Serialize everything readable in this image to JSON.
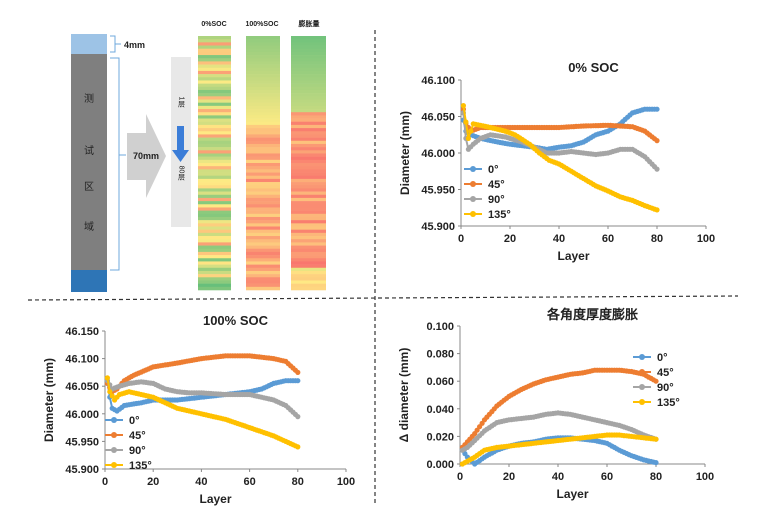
{
  "diagram": {
    "label_4mm": "4mm",
    "label_70mm": "70mm",
    "test_region_chars": [
      "测",
      "试",
      "区",
      "域"
    ],
    "layer_top": "1层",
    "layer_bottom": "80层",
    "strip_labels": [
      "0%SOC",
      "100%SOC",
      "膨胀量"
    ]
  },
  "colors": {
    "s0": "#5B9BD5",
    "s45": "#ED7D31",
    "s90": "#A5A5A5",
    "s135": "#FFC000",
    "divider": "#333333",
    "axis": "#888888",
    "grid": "#d9d9d9",
    "bar_top": "#9dc3e6",
    "bar_main": "#7f7f7f",
    "bar_bottom": "#2e75b6",
    "arrow_body": "#d0d0d0",
    "arrow_blue": "#3b7dd8"
  },
  "chart_data": [
    {
      "id": "soc0",
      "type": "line",
      "title": "0% SOC",
      "xlabel": "Layer",
      "ylabel": "Diameter (mm)",
      "xlim": [
        0,
        100
      ],
      "ylim": [
        45.9,
        46.1
      ],
      "xticks": [
        0,
        20,
        40,
        60,
        80,
        100
      ],
      "yticks": [
        45.9,
        45.95,
        46.0,
        46.05,
        46.1
      ],
      "ytick_labels": [
        "45.900",
        "45.950",
        "46.000",
        "46.050",
        "46.100"
      ],
      "legend": "left",
      "series": [
        {
          "name": "0°",
          "color": "#5B9BD5",
          "points": [
            [
              1,
              46.045
            ],
            [
              2,
              46.03
            ],
            [
              4,
              46.025
            ],
            [
              8,
              46.02
            ],
            [
              15,
              46.015
            ],
            [
              20,
              46.012
            ],
            [
              25,
              46.01
            ],
            [
              30,
              46.008
            ],
            [
              35,
              46.005
            ],
            [
              40,
              46.008
            ],
            [
              45,
              46.01
            ],
            [
              50,
              46.015
            ],
            [
              55,
              46.025
            ],
            [
              60,
              46.03
            ],
            [
              65,
              46.04
            ],
            [
              70,
              46.055
            ],
            [
              75,
              46.06
            ],
            [
              80,
              46.06
            ]
          ]
        },
        {
          "name": "45°",
          "color": "#ED7D31",
          "points": [
            [
              1,
              46.06
            ],
            [
              2,
              46.04
            ],
            [
              4,
              46.03
            ],
            [
              8,
              46.035
            ],
            [
              15,
              46.035
            ],
            [
              20,
              46.035
            ],
            [
              30,
              46.035
            ],
            [
              40,
              46.035
            ],
            [
              50,
              46.037
            ],
            [
              60,
              46.038
            ],
            [
              70,
              46.036
            ],
            [
              75,
              46.03
            ],
            [
              80,
              46.017
            ]
          ]
        },
        {
          "name": "90°",
          "color": "#A5A5A5",
          "points": [
            [
              1,
              46.055
            ],
            [
              2,
              46.02
            ],
            [
              3,
              46.005
            ],
            [
              5,
              46.012
            ],
            [
              8,
              46.02
            ],
            [
              12,
              46.025
            ],
            [
              18,
              46.022
            ],
            [
              25,
              46.015
            ],
            [
              30,
              46.008
            ],
            [
              35,
              46.0
            ],
            [
              40,
              46.0
            ],
            [
              45,
              46.002
            ],
            [
              50,
              46.0
            ],
            [
              55,
              45.998
            ],
            [
              60,
              46.0
            ],
            [
              65,
              46.005
            ],
            [
              70,
              46.005
            ],
            [
              75,
              45.995
            ],
            [
              80,
              45.978
            ]
          ]
        },
        {
          "name": "135°",
          "color": "#FFC000",
          "points": [
            [
              1,
              46.065
            ],
            [
              3,
              46.02
            ],
            [
              5,
              46.04
            ],
            [
              8,
              46.038
            ],
            [
              12,
              46.035
            ],
            [
              18,
              46.03
            ],
            [
              22,
              46.025
            ],
            [
              28,
              46.012
            ],
            [
              32,
              46.0
            ],
            [
              36,
              45.99
            ],
            [
              40,
              45.985
            ],
            [
              45,
              45.975
            ],
            [
              50,
              45.965
            ],
            [
              55,
              45.955
            ],
            [
              60,
              45.948
            ],
            [
              65,
              45.94
            ],
            [
              70,
              45.935
            ],
            [
              75,
              45.928
            ],
            [
              80,
              45.922
            ]
          ]
        }
      ]
    },
    {
      "id": "soc100",
      "type": "line",
      "title": "100% SOC",
      "xlabel": "Layer",
      "ylabel": "Diameter (mm)",
      "xlim": [
        0,
        100
      ],
      "ylim": [
        45.9,
        46.15
      ],
      "xticks": [
        0,
        20,
        40,
        60,
        80,
        100
      ],
      "yticks": [
        45.9,
        45.95,
        46.0,
        46.05,
        46.1,
        46.15
      ],
      "ytick_labels": [
        "45.900",
        "45.950",
        "46.000",
        "46.050",
        "46.100",
        "46.150"
      ],
      "legend": "bottom-left",
      "series": [
        {
          "name": "0°",
          "color": "#5B9BD5",
          "points": [
            [
              1,
              46.06
            ],
            [
              2,
              46.03
            ],
            [
              3,
              46.01
            ],
            [
              5,
              46.005
            ],
            [
              8,
              46.015
            ],
            [
              15,
              46.02
            ],
            [
              20,
              46.025
            ],
            [
              30,
              46.025
            ],
            [
              40,
              46.03
            ],
            [
              50,
              46.035
            ],
            [
              60,
              46.04
            ],
            [
              65,
              46.045
            ],
            [
              70,
              46.055
            ],
            [
              75,
              46.06
            ],
            [
              80,
              46.06
            ]
          ]
        },
        {
          "name": "45°",
          "color": "#ED7D31",
          "points": [
            [
              1,
              46.055
            ],
            [
              3,
              46.04
            ],
            [
              5,
              46.045
            ],
            [
              8,
              46.06
            ],
            [
              12,
              46.07
            ],
            [
              20,
              46.085
            ],
            [
              30,
              46.092
            ],
            [
              40,
              46.1
            ],
            [
              50,
              46.105
            ],
            [
              60,
              46.105
            ],
            [
              70,
              46.1
            ],
            [
              75,
              46.095
            ],
            [
              80,
              46.075
            ]
          ]
        },
        {
          "name": "90°",
          "color": "#A5A5A5",
          "points": [
            [
              1,
              46.06
            ],
            [
              3,
              46.045
            ],
            [
              6,
              46.05
            ],
            [
              10,
              46.055
            ],
            [
              15,
              46.058
            ],
            [
              20,
              46.055
            ],
            [
              25,
              46.045
            ],
            [
              30,
              46.04
            ],
            [
              35,
              46.038
            ],
            [
              40,
              46.038
            ],
            [
              50,
              46.035
            ],
            [
              60,
              46.035
            ],
            [
              65,
              46.03
            ],
            [
              70,
              46.025
            ],
            [
              75,
              46.015
            ],
            [
              80,
              45.995
            ]
          ]
        },
        {
          "name": "135°",
          "color": "#FFC000",
          "points": [
            [
              1,
              46.065
            ],
            [
              2,
              46.04
            ],
            [
              4,
              46.025
            ],
            [
              6,
              46.035
            ],
            [
              10,
              46.04
            ],
            [
              15,
              46.035
            ],
            [
              20,
              46.03
            ],
            [
              25,
              46.02
            ],
            [
              30,
              46.01
            ],
            [
              40,
              46.0
            ],
            [
              50,
              45.99
            ],
            [
              60,
              45.975
            ],
            [
              70,
              45.96
            ],
            [
              75,
              45.95
            ],
            [
              80,
              45.94
            ]
          ]
        }
      ]
    },
    {
      "id": "expansion",
      "type": "line",
      "title": "各角度厚度膨胀",
      "xlabel": "Layer",
      "ylabel": "Δ diameter (mm)",
      "xlim": [
        0,
        100
      ],
      "ylim": [
        0,
        0.1
      ],
      "xticks": [
        0,
        20,
        40,
        60,
        80,
        100
      ],
      "yticks": [
        0,
        0.02,
        0.04,
        0.06,
        0.08,
        0.1
      ],
      "ytick_labels": [
        "0.000",
        "0.020",
        "0.040",
        "0.060",
        "0.080",
        "0.100"
      ],
      "legend": "right",
      "series": [
        {
          "name": "0°",
          "color": "#5B9BD5",
          "points": [
            [
              1,
              0.01
            ],
            [
              3,
              0.005
            ],
            [
              6,
              0.0
            ],
            [
              10,
              0.005
            ],
            [
              15,
              0.01
            ],
            [
              20,
              0.013
            ],
            [
              25,
              0.015
            ],
            [
              30,
              0.016
            ],
            [
              35,
              0.018
            ],
            [
              40,
              0.019
            ],
            [
              45,
              0.019
            ],
            [
              50,
              0.018
            ],
            [
              55,
              0.017
            ],
            [
              60,
              0.015
            ],
            [
              65,
              0.01
            ],
            [
              70,
              0.006
            ],
            [
              75,
              0.003
            ],
            [
              80,
              0.001
            ]
          ]
        },
        {
          "name": "45°",
          "color": "#ED7D31",
          "points": [
            [
              1,
              0.012
            ],
            [
              3,
              0.016
            ],
            [
              6,
              0.022
            ],
            [
              10,
              0.032
            ],
            [
              15,
              0.042
            ],
            [
              20,
              0.049
            ],
            [
              25,
              0.054
            ],
            [
              30,
              0.058
            ],
            [
              35,
              0.061
            ],
            [
              40,
              0.063
            ],
            [
              45,
              0.065
            ],
            [
              50,
              0.066
            ],
            [
              55,
              0.068
            ],
            [
              60,
              0.068
            ],
            [
              65,
              0.068
            ],
            [
              70,
              0.067
            ],
            [
              75,
              0.065
            ],
            [
              80,
              0.06
            ]
          ]
        },
        {
          "name": "90°",
          "color": "#A5A5A5",
          "points": [
            [
              1,
              0.01
            ],
            [
              3,
              0.012
            ],
            [
              6,
              0.017
            ],
            [
              10,
              0.024
            ],
            [
              15,
              0.03
            ],
            [
              20,
              0.032
            ],
            [
              25,
              0.033
            ],
            [
              30,
              0.034
            ],
            [
              35,
              0.036
            ],
            [
              40,
              0.037
            ],
            [
              45,
              0.036
            ],
            [
              50,
              0.034
            ],
            [
              55,
              0.032
            ],
            [
              60,
              0.03
            ],
            [
              65,
              0.028
            ],
            [
              70,
              0.025
            ],
            [
              75,
              0.021
            ],
            [
              80,
              0.018
            ]
          ]
        },
        {
          "name": "135°",
          "color": "#FFC000",
          "points": [
            [
              1,
              0.0
            ],
            [
              3,
              0.002
            ],
            [
              6,
              0.005
            ],
            [
              10,
              0.01
            ],
            [
              15,
              0.012
            ],
            [
              20,
              0.013
            ],
            [
              25,
              0.014
            ],
            [
              30,
              0.015
            ],
            [
              40,
              0.017
            ],
            [
              50,
              0.019
            ],
            [
              55,
              0.02
            ],
            [
              60,
              0.021
            ],
            [
              65,
              0.021
            ],
            [
              70,
              0.02
            ],
            [
              75,
              0.019
            ],
            [
              80,
              0.018
            ]
          ]
        }
      ]
    }
  ]
}
